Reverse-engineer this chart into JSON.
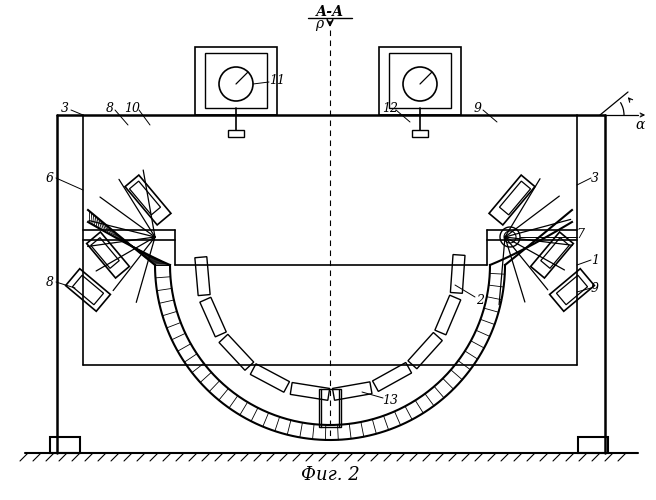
{
  "bg_color": "#ffffff",
  "lc": "#000000",
  "fig_w": 6.56,
  "fig_h": 5.0,
  "caption": "Фиг. 2",
  "AA_label": "А-А",
  "rho": "ρ",
  "alpha": "α"
}
